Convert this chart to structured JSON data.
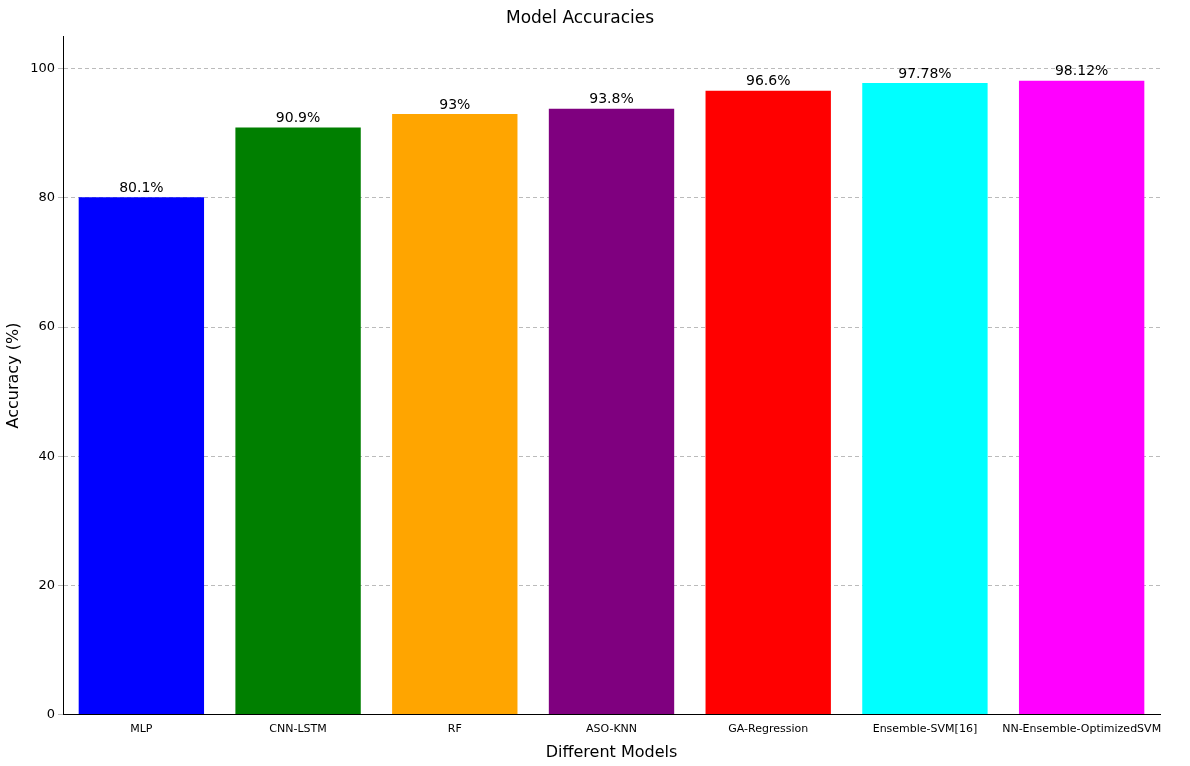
{
  "chart_data": {
    "type": "bar",
    "title": "Model Accuracies",
    "xlabel": "Different Models",
    "ylabel": "Accuracy (%)",
    "categories": [
      "MLP",
      "CNN-LSTM",
      "RF",
      "ASO-KNN",
      "GA-Regression",
      "Ensemble-SVM[16]",
      "NN-Ensemble-OptimizedSVM"
    ],
    "values": [
      80.1,
      90.9,
      93,
      93.8,
      96.6,
      97.78,
      98.12
    ],
    "colors": [
      "#0000ff",
      "#007f00",
      "#ffa500",
      "#7f007f",
      "#ff0000",
      "#00ffff",
      "#ff00ff"
    ],
    "value_labels": [
      "80.1%",
      "90.9%",
      "93%",
      "93.8%",
      "96.6%",
      "97.78%",
      "98.12%"
    ],
    "ylim": [
      0,
      105
    ],
    "yticks": [
      0,
      20,
      40,
      60,
      80,
      100
    ],
    "grid": "y",
    "line_style": "dashed",
    "legend": false
  }
}
